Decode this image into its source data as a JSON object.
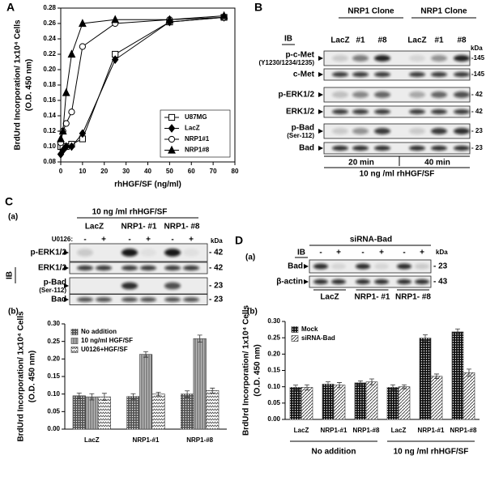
{
  "chart_data": [
    {
      "type": "line",
      "panel": "A",
      "y_label": "BrdUrd Incorporation/ 1x10⁴ Cells",
      "y_label_unit": "(O.D. 450 nm)",
      "x_label": "rhHGF/SF (ng/ml)",
      "x": [
        0,
        1,
        2.5,
        5,
        10,
        25,
        50,
        75
      ],
      "xlim": [
        0,
        80
      ],
      "xticks": [
        0,
        10,
        20,
        30,
        40,
        50,
        60,
        70,
        80
      ],
      "ylim": [
        0.08,
        0.28
      ],
      "yticks": [
        0.08,
        {
          "value": 0.1,
          "label": "0.10"
        },
        0.12,
        0.14,
        0.16,
        0.18,
        {
          "value": 0.2,
          "label": "0.20"
        },
        0.22,
        0.24,
        0.26,
        0.28
      ],
      "legend": "lower-right",
      "series": [
        {
          "name": "U87MG",
          "color": "#000000",
          "marker": "square",
          "filled": false,
          "values": [
            0.1,
            0.1,
            0.1,
            0.103,
            0.11,
            0.22,
            0.262,
            0.268
          ]
        },
        {
          "name": "LacZ",
          "color": "#000000",
          "marker": "diamond",
          "filled": true,
          "values": [
            0.09,
            0.095,
            0.1,
            0.1,
            0.117,
            0.213,
            0.262,
            0.268
          ]
        },
        {
          "name": "NRP1#1",
          "color": "#000000",
          "marker": "circle",
          "filled": false,
          "values": [
            0.105,
            0.12,
            0.13,
            0.145,
            0.23,
            0.26,
            0.265,
            0.268
          ]
        },
        {
          "name": "NRP1#8",
          "color": "#000000",
          "marker": "triangle",
          "filled": true,
          "values": [
            0.11,
            0.12,
            0.17,
            0.22,
            0.26,
            0.265,
            0.265,
            0.27
          ]
        }
      ]
    },
    {
      "type": "bar",
      "panel": "(b)",
      "y_label": "BrdUrd Incorporation/ 1x10⁴ Cells",
      "y_label_unit": "(O.D. 450 nm)",
      "categories": [
        "LacZ",
        "NRP1-#1",
        "NRP1-#8"
      ],
      "ylim": [
        0,
        0.3
      ],
      "yticks": [
        {
          "value": 0,
          "label": "0.00"
        },
        0.05,
        {
          "value": 0.1,
          "label": "0.10"
        },
        0.15,
        {
          "value": 0.2,
          "label": "0.20"
        },
        0.25,
        {
          "value": 0.3,
          "label": "0.30"
        }
      ],
      "legend": "upper-left",
      "series": [
        {
          "name": "No addition",
          "color": "#555555",
          "pattern": "dots",
          "values": [
            0.095,
            0.093,
            0.1
          ],
          "errors": [
            0.008,
            0.008,
            0.009
          ]
        },
        {
          "name": "10 ng/ml HGF/SF",
          "color": "#b8b8b8",
          "pattern": "stripes",
          "values": [
            0.092,
            0.213,
            0.258
          ],
          "errors": [
            0.009,
            0.008,
            0.01
          ]
        },
        {
          "name": "U0126+HGF/SF",
          "color": "#ffffff",
          "pattern": "zigzag",
          "values": [
            0.092,
            0.1,
            0.11
          ],
          "errors": [
            0.01,
            0.005,
            0.007
          ]
        }
      ]
    },
    {
      "type": "bar",
      "panel": "(b)",
      "y_label": "BrdUrd Incorporation/ 1x10⁴ Cells",
      "y_label_unit": "(O.D. 450 nm)",
      "categories": [
        "LacZ",
        "NRP1-#1",
        "NRP1-#8",
        "LacZ",
        "NRP1-#1",
        "NRP1-#8"
      ],
      "groups": [
        "No addition",
        "10 ng /ml rhHGF/SF"
      ],
      "ylim": [
        0,
        0.3
      ],
      "yticks": [
        {
          "value": 0,
          "label": "0.00"
        },
        0.05,
        {
          "value": 0.1,
          "label": "0.10"
        },
        0.15,
        {
          "value": 0.2,
          "label": "0.20"
        },
        0.25,
        {
          "value": 0.3,
          "label": "0.30"
        }
      ],
      "legend": "upper-left",
      "series": [
        {
          "name": "Mock",
          "color": "#111111",
          "pattern": "dots",
          "values": [
            0.098,
            0.108,
            0.112,
            0.098,
            0.249,
            0.268
          ],
          "errors": [
            0.007,
            0.007,
            0.006,
            0.008,
            0.01,
            0.009
          ]
        },
        {
          "name": "siRNA-Bad",
          "color": "#ffffff",
          "pattern": "hatch",
          "values": [
            0.098,
            0.105,
            0.115,
            0.1,
            0.132,
            0.143
          ],
          "errors": [
            0.008,
            0.008,
            0.009,
            0.006,
            0.007,
            0.011
          ]
        }
      ]
    }
  ],
  "blot_B": {
    "letter": "B",
    "ib": "IB",
    "clone_labels": [
      "NRP1 Clone",
      "NRP1 Clone"
    ],
    "lanes": [
      "LacZ",
      "#1",
      "#8",
      "LacZ",
      "#1",
      "#8"
    ],
    "kda": "kDa",
    "rows": [
      {
        "label": "p-c-Met",
        "sublabel": "(Y1230/1234/1235)",
        "marker": "-145"
      },
      {
        "label": "c-Met",
        "marker": "-145"
      },
      {
        "label": "p-ERK1/2",
        "marker": "- 42"
      },
      {
        "label": "ERK1/2",
        "marker": "- 42"
      },
      {
        "label": "p-Bad",
        "sublabel": "(Ser-112)",
        "marker": "- 23"
      },
      {
        "label": "Bad",
        "marker": "- 23"
      }
    ],
    "times": [
      "20 min",
      "40 min"
    ],
    "treatment": "10 ng /ml rhHGF/SF"
  },
  "blot_C": {
    "letter": "C",
    "sub": "(a)",
    "treatment": "10 ng /ml rhHGF/SF",
    "lane_groups": [
      "LacZ",
      "NRP1- #1",
      "NRP1- #8"
    ],
    "inhibitor": "U0126:",
    "signs": [
      "-",
      "+",
      "-",
      "+",
      "-",
      "+"
    ],
    "kda": "kDa",
    "ib": "IB",
    "rows": [
      {
        "label": "p-ERK1/2",
        "marker": "- 42"
      },
      {
        "label": "ERK1/2",
        "marker": "- 42"
      },
      {
        "label": "p-Bad",
        "sublabel": "(Ser-112)",
        "marker": "- 23"
      },
      {
        "label": "Bad",
        "marker": "- 23"
      }
    ]
  },
  "blot_D": {
    "letter": "D",
    "sub": "(a)",
    "treatment": "siRNA-Bad",
    "ib": "IB",
    "signs": [
      "-",
      "+",
      "-",
      "+",
      "-",
      "+"
    ],
    "kda": "kDa",
    "rows": [
      {
        "label": "Bad",
        "marker": "- 23"
      },
      {
        "label": "β-actin",
        "marker": "- 43"
      }
    ],
    "lane_groups": [
      "LacZ",
      "NRP1- #1",
      "NRP1- #8"
    ]
  }
}
